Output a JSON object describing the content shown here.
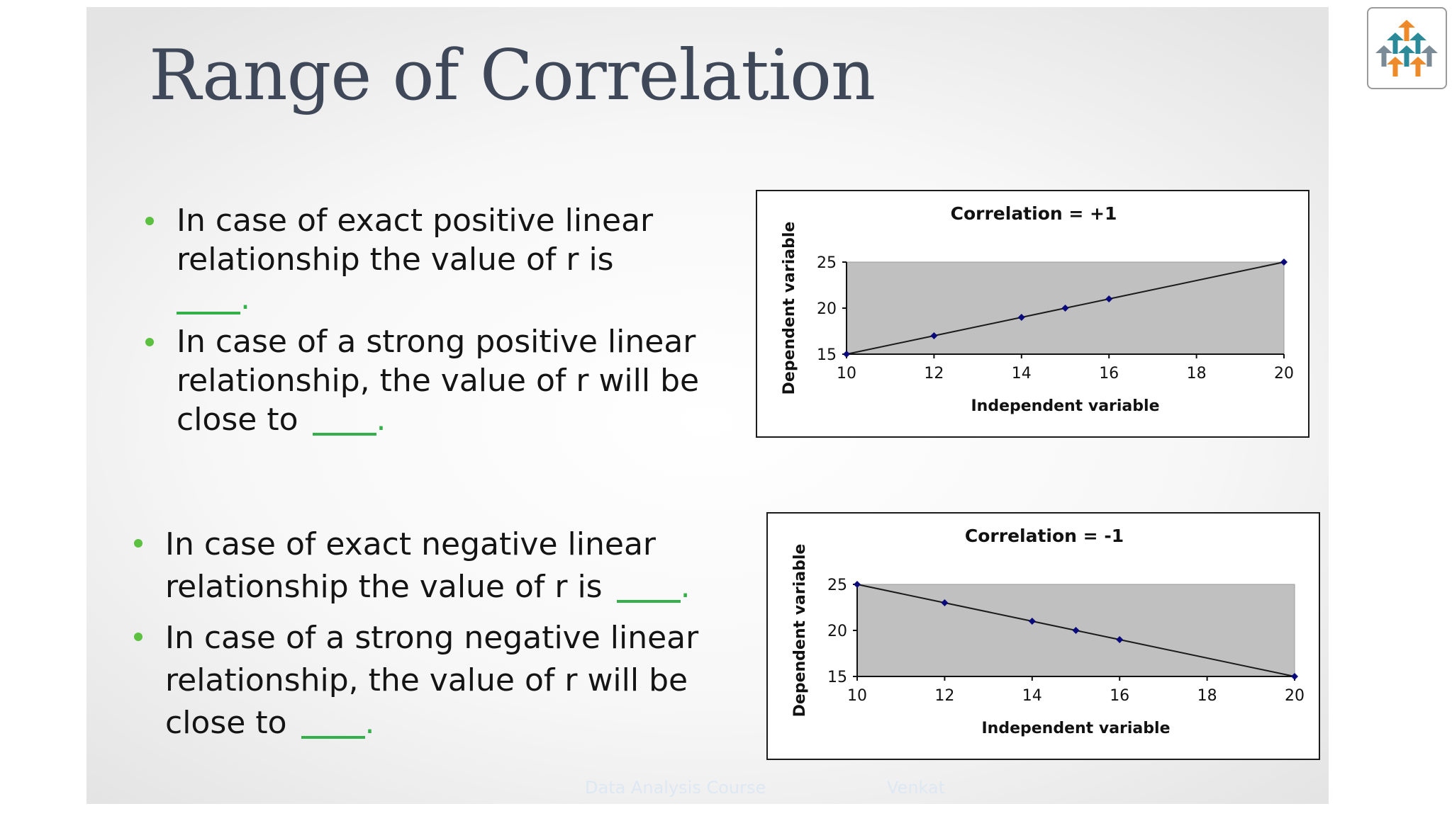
{
  "slide": {
    "title": "Range of Correlation",
    "footer": {
      "course": "Data Analysis Course",
      "author": "Venkat"
    }
  },
  "bullets_positive": [
    {
      "text": "In case of exact positive linear relationship the value of r is",
      "blank_width": 90
    },
    {
      "text": "In case of a strong positive linear relationship, the value of r will be close to",
      "blank_width": 90
    }
  ],
  "bullets_negative": [
    {
      "text": "In case of exact negative linear relationship the value of r is",
      "blank_width": 90
    },
    {
      "text": "In case of a strong negative linear relationship, the value of r will be close to",
      "blank_width": 90
    }
  ],
  "chart_data": [
    {
      "type": "scatter",
      "title": "Correlation = +1",
      "xlabel": "Independent variable",
      "ylabel": "Dependent variable",
      "x": [
        10,
        12,
        14,
        15,
        16,
        20
      ],
      "y": [
        15,
        17,
        19,
        20,
        21,
        25
      ],
      "xlim": [
        10,
        20
      ],
      "ylim": [
        15,
        25
      ],
      "xticks": [
        10,
        12,
        14,
        16,
        18,
        20
      ],
      "yticks": [
        15,
        20,
        25
      ],
      "plot_area_color": "#c0c0c0",
      "marker_color": "#0a0a7a",
      "line_color": "#1a1a1a",
      "grid": false,
      "legend": "none"
    },
    {
      "type": "scatter",
      "title": "Correlation = -1",
      "xlabel": "Independent variable",
      "ylabel": "Dependent variable",
      "x": [
        10,
        12,
        14,
        15,
        16,
        20
      ],
      "y": [
        25,
        23,
        21,
        20,
        19,
        15
      ],
      "xlim": [
        10,
        20
      ],
      "ylim": [
        15,
        25
      ],
      "xticks": [
        10,
        12,
        14,
        16,
        18,
        20
      ],
      "yticks": [
        15,
        20,
        25
      ],
      "plot_area_color": "#c0c0c0",
      "marker_color": "#0a0a7a",
      "line_color": "#1a1a1a",
      "grid": false,
      "legend": "none"
    }
  ],
  "colors": {
    "title": "#3f4858",
    "bullet": "#5cc040",
    "blank": "#34b04a",
    "logo_teal": "#2a8a9a",
    "logo_orange": "#ee8a2a",
    "logo_gray": "#7a8a96"
  },
  "logo": {
    "icon": "arrows-up-icon"
  }
}
